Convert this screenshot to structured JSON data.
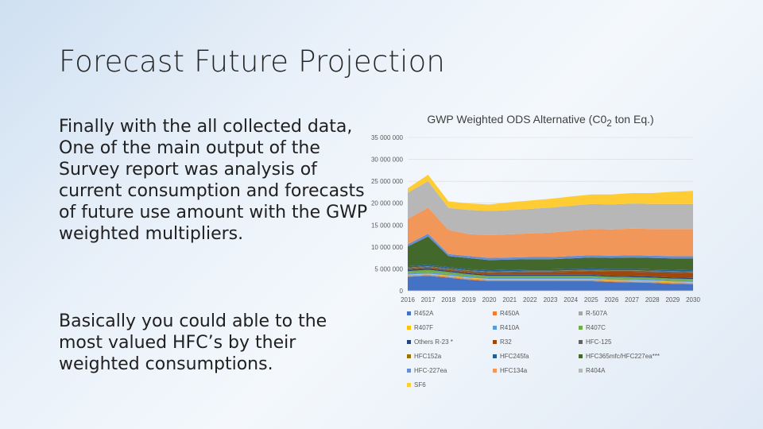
{
  "slide": {
    "title": "Forecast Future Projection",
    "paragraph_1": "Finally with the all collected data, One of the main output of the Survey report was analysis of current consumption and forecasts of future use amount with the GWP weighted multipliers.",
    "paragraph_2": "Basically you could able to the most valued HFC’s by  their weighted consumptions."
  },
  "chart_data": {
    "type": "area",
    "stacked": true,
    "title": "GWP Weighted ODS Alternative (C0",
    "title_subscript": "2",
    "title_suffix": " ton Eq.)",
    "x": [
      2016,
      2017,
      2018,
      2019,
      2020,
      2021,
      2022,
      2023,
      2024,
      2025,
      2026,
      2027,
      2028,
      2029,
      2030
    ],
    "y_ticks": [
      "0",
      "5 000 000",
      "10 000 000",
      "15 000 000",
      "20 000 000",
      "25 000 000",
      "30 000 000",
      "35 000 000"
    ],
    "ylim": [
      0,
      35000000
    ],
    "legend_position": "bottom",
    "series": [
      {
        "name": "R452A",
        "color": "#4472c4",
        "values": [
          3200000,
          3400000,
          3000000,
          2500000,
          2200000,
          2200000,
          2200000,
          2200000,
          2200000,
          2200000,
          2000000,
          1900000,
          1800000,
          1600000,
          1500000
        ]
      },
      {
        "name": "R450A",
        "color": "#ed7d31",
        "values": [
          150000,
          150000,
          150000,
          150000,
          150000,
          150000,
          150000,
          150000,
          150000,
          150000,
          150000,
          150000,
          150000,
          150000,
          150000
        ]
      },
      {
        "name": "R-507A",
        "color": "#a5a5a5",
        "values": [
          200000,
          200000,
          200000,
          200000,
          200000,
          200000,
          200000,
          200000,
          200000,
          200000,
          200000,
          200000,
          200000,
          200000,
          200000
        ]
      },
      {
        "name": "R407F",
        "color": "#ffc000",
        "values": [
          150000,
          150000,
          150000,
          150000,
          150000,
          150000,
          150000,
          150000,
          150000,
          150000,
          150000,
          150000,
          150000,
          150000,
          150000
        ]
      },
      {
        "name": "R410A",
        "color": "#5b9bd5",
        "values": [
          300000,
          300000,
          300000,
          300000,
          300000,
          300000,
          300000,
          300000,
          300000,
          300000,
          300000,
          300000,
          300000,
          300000,
          300000
        ]
      },
      {
        "name": "R407C",
        "color": "#70ad47",
        "values": [
          500000,
          600000,
          500000,
          450000,
          400000,
          400000,
          400000,
          400000,
          400000,
          400000,
          400000,
          400000,
          400000,
          400000,
          400000
        ]
      },
      {
        "name": "Others R-23 *",
        "color": "#264478",
        "values": [
          300000,
          300000,
          250000,
          250000,
          250000,
          250000,
          250000,
          250000,
          250000,
          250000,
          250000,
          250000,
          250000,
          250000,
          250000
        ]
      },
      {
        "name": "R32",
        "color": "#9e480e",
        "values": [
          100000,
          100000,
          200000,
          300000,
          400000,
          500000,
          600000,
          600000,
          700000,
          800000,
          900000,
          1000000,
          1000000,
          1100000,
          1100000
        ]
      },
      {
        "name": "HFC-125",
        "color": "#636363",
        "values": [
          300000,
          300000,
          250000,
          250000,
          250000,
          250000,
          250000,
          250000,
          250000,
          250000,
          250000,
          250000,
          250000,
          250000,
          250000
        ]
      },
      {
        "name": "HFC152a",
        "color": "#997300",
        "values": [
          100000,
          100000,
          100000,
          100000,
          100000,
          100000,
          100000,
          100000,
          100000,
          100000,
          100000,
          100000,
          100000,
          100000,
          100000
        ]
      },
      {
        "name": "HFC245fa",
        "color": "#255e91",
        "values": [
          300000,
          300000,
          300000,
          300000,
          300000,
          300000,
          300000,
          300000,
          300000,
          300000,
          300000,
          300000,
          300000,
          300000,
          300000
        ]
      },
      {
        "name": "HFC365mfc/HFC227ea***",
        "color": "#43682b",
        "values": [
          4500000,
          6500000,
          2500000,
          2500000,
          2300000,
          2300000,
          2300000,
          2300000,
          2400000,
          2500000,
          2500000,
          2600000,
          2600000,
          2600000,
          2700000
        ]
      },
      {
        "name": "HFC-227ea",
        "color": "#698ed0",
        "values": [
          500000,
          600000,
          500000,
          500000,
          500000,
          500000,
          500000,
          500000,
          500000,
          500000,
          500000,
          500000,
          500000,
          500000,
          500000
        ]
      },
      {
        "name": "HFC134a",
        "color": "#f1975a",
        "values": [
          5800000,
          6000000,
          5500000,
          5000000,
          5200000,
          5300000,
          5400000,
          5600000,
          5800000,
          6000000,
          6000000,
          6100000,
          6100000,
          6200000,
          6200000
        ]
      },
      {
        "name": "R404A",
        "color": "#b7b7b7",
        "values": [
          6000000,
          6000000,
          5000000,
          5500000,
          5500000,
          5500000,
          5600000,
          5700000,
          5700000,
          5700000,
          5700000,
          5700000,
          5700000,
          5700000,
          5700000
        ]
      },
      {
        "name": "SF6",
        "color": "#ffcd33",
        "values": [
          1000000,
          1500000,
          1500000,
          1500000,
          1500000,
          1800000,
          1900000,
          2000000,
          2100000,
          2200000,
          2300000,
          2400000,
          2500000,
          2800000,
          3000000
        ]
      }
    ]
  }
}
